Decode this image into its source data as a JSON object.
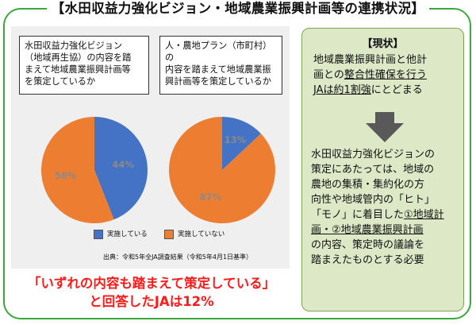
{
  "title": "【水田収益力強化ビジョン・地域農業振興計画等の連携状況】",
  "question1": [
    "水田収益力強化ビジョン",
    "（地域再生協）の内容を踏",
    "まえて地域農業振興計画等",
    "を策定しているか"
  ],
  "question2": [
    "人・農地プラン（市町村）の",
    "内容を踏まえて地域農業振",
    "興計画等を策定しているか"
  ],
  "chart_data": [
    {
      "type": "pie",
      "categories": [
        "実施している",
        "実施していない"
      ],
      "values": [
        44,
        56
      ],
      "labels": [
        "44%",
        "56%"
      ]
    },
    {
      "type": "pie",
      "categories": [
        "実施している",
        "実施していない"
      ],
      "values": [
        13,
        87
      ],
      "labels": [
        "13%",
        "87%"
      ]
    }
  ],
  "legend": [
    {
      "label": "実施している",
      "color": "#4472c4"
    },
    {
      "label": "実施していない",
      "color": "#ed7d31"
    }
  ],
  "source": "出典：令和5年全JA調査結果（令和5年4月1日基準）",
  "conclusion": [
    "「いずれの内容も踏まえて策定している」",
    "と回答したJAは12%"
  ],
  "status_panel": {
    "heading": "【現状】",
    "text1_a": "地域農業振興計画と他計",
    "text1_b_prefix": "画との",
    "text1_b_ul": "整合性確保を行う",
    "text1_c_ul": "JAは約1割強",
    "text1_c_suffix": "にとどまる",
    "text2": [
      "水田収益力強化ビジョンの",
      "策定にあたっては、地域の",
      "農地の集積・集約化の方",
      "向性や地域管内の「ヒト」"
    ],
    "text2_line5_prefix": "「モノ」に着目した",
    "text2_line5_ul": "①地域計",
    "text2_line6_ul": "画・②地域農業振興計画",
    "text2_line7": "の内容、策定時の議論を",
    "text2_line8": "踏まえたものとする必要"
  },
  "colors": {
    "frame": "#3aa83a",
    "blue": "#4472c4",
    "orange": "#ed7d31",
    "red": "#ff1a1a",
    "panel_green": "#dce8c6"
  }
}
